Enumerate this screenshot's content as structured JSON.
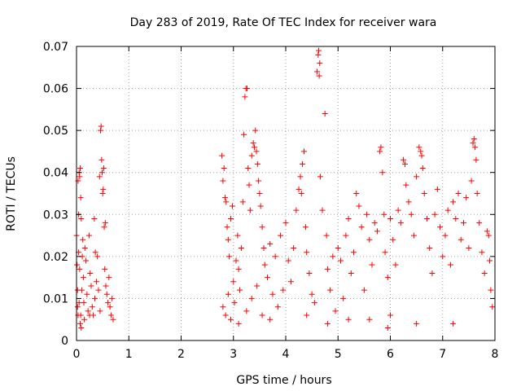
{
  "chart_data": {
    "type": "scatter",
    "title": "Day 283 of 2019, Rate Of TEC Index for receiver wara",
    "xlabel": "GPS time / hours",
    "ylabel": "ROTI / TECUs",
    "xlim": [
      0,
      8
    ],
    "ylim": [
      0,
      0.07
    ],
    "x_ticks": [
      0,
      1,
      2,
      3,
      4,
      5,
      6,
      7,
      8
    ],
    "x_tick_labels": [
      "0",
      "1",
      "2",
      "3",
      "4",
      "5",
      "6",
      "7",
      "8"
    ],
    "y_ticks": [
      0,
      0.01,
      0.02,
      0.03,
      0.04,
      0.05,
      0.06,
      0.07
    ],
    "y_tick_labels": [
      "0",
      "0.01",
      "0.02",
      "0.03",
      "0.04",
      "0.05",
      "0.06",
      "0.07"
    ],
    "grid": true,
    "marker": "+",
    "color": "#ff0000",
    "series": [
      {
        "name": "ROTI",
        "points": [
          [
            0.0,
            0.025
          ],
          [
            0.01,
            0.018
          ],
          [
            0.02,
            0.008
          ],
          [
            0.03,
            0.038
          ],
          [
            0.04,
            0.03
          ],
          [
            0.05,
            0.04
          ],
          [
            0.06,
            0.039
          ],
          [
            0.07,
            0.041
          ],
          [
            0.08,
            0.034
          ],
          [
            0.09,
            0.029
          ],
          [
            0.02,
            0.012
          ],
          [
            0.04,
            0.021
          ],
          [
            0.06,
            0.017
          ],
          [
            0.08,
            0.006
          ],
          [
            0.1,
            0.012
          ],
          [
            0.11,
            0.02
          ],
          [
            0.12,
            0.024
          ],
          [
            0.13,
            0.015
          ],
          [
            0.14,
            0.009
          ],
          [
            0.15,
            0.005
          ],
          [
            0.03,
            0.006
          ],
          [
            0.05,
            0.009
          ],
          [
            0.07,
            0.004
          ],
          [
            0.09,
            0.003
          ],
          [
            0.16,
            0.022
          ],
          [
            0.18,
            0.019
          ],
          [
            0.2,
            0.011
          ],
          [
            0.22,
            0.007
          ],
          [
            0.24,
            0.025
          ],
          [
            0.26,
            0.016
          ],
          [
            0.28,
            0.013
          ],
          [
            0.3,
            0.008
          ],
          [
            0.32,
            0.006
          ],
          [
            0.34,
            0.029
          ],
          [
            0.36,
            0.021
          ],
          [
            0.38,
            0.014
          ],
          [
            0.4,
            0.02
          ],
          [
            0.42,
            0.012
          ],
          [
            0.44,
            0.039
          ],
          [
            0.46,
            0.05
          ],
          [
            0.47,
            0.051
          ],
          [
            0.48,
            0.043
          ],
          [
            0.49,
            0.04
          ],
          [
            0.5,
            0.035
          ],
          [
            0.51,
            0.036
          ],
          [
            0.52,
            0.041
          ],
          [
            0.53,
            0.027
          ],
          [
            0.54,
            0.017
          ],
          [
            0.55,
            0.028
          ],
          [
            0.56,
            0.013
          ],
          [
            0.58,
            0.011
          ],
          [
            0.6,
            0.009
          ],
          [
            0.62,
            0.015
          ],
          [
            0.64,
            0.008
          ],
          [
            0.66,
            0.006
          ],
          [
            0.68,
            0.01
          ],
          [
            0.7,
            0.005
          ],
          [
            0.35,
            0.01
          ],
          [
            0.45,
            0.007
          ],
          [
            0.25,
            0.006
          ],
          [
            2.78,
            0.044
          ],
          [
            2.8,
            0.038
          ],
          [
            2.82,
            0.041
          ],
          [
            2.84,
            0.034
          ],
          [
            2.86,
            0.033
          ],
          [
            2.88,
            0.027
          ],
          [
            2.9,
            0.024
          ],
          [
            2.92,
            0.02
          ],
          [
            2.95,
            0.029
          ],
          [
            2.98,
            0.032
          ],
          [
            2.8,
            0.008
          ],
          [
            2.85,
            0.006
          ],
          [
            2.9,
            0.011
          ],
          [
            2.95,
            0.005
          ],
          [
            3.0,
            0.014
          ],
          [
            3.02,
            0.009
          ],
          [
            3.05,
            0.019
          ],
          [
            3.08,
            0.025
          ],
          [
            3.1,
            0.017
          ],
          [
            3.12,
            0.012
          ],
          [
            3.15,
            0.022
          ],
          [
            3.18,
            0.033
          ],
          [
            3.2,
            0.049
          ],
          [
            3.22,
            0.058
          ],
          [
            3.24,
            0.06
          ],
          [
            3.26,
            0.06
          ],
          [
            3.28,
            0.041
          ],
          [
            3.3,
            0.037
          ],
          [
            3.32,
            0.031
          ],
          [
            3.35,
            0.044
          ],
          [
            3.38,
            0.047
          ],
          [
            3.4,
            0.046
          ],
          [
            3.42,
            0.05
          ],
          [
            3.44,
            0.045
          ],
          [
            3.46,
            0.042
          ],
          [
            3.48,
            0.038
          ],
          [
            3.5,
            0.035
          ],
          [
            3.52,
            0.032
          ],
          [
            3.55,
            0.027
          ],
          [
            3.58,
            0.022
          ],
          [
            3.25,
            0.007
          ],
          [
            3.35,
            0.01
          ],
          [
            3.45,
            0.013
          ],
          [
            3.55,
            0.006
          ],
          [
            3.6,
            0.018
          ],
          [
            3.65,
            0.015
          ],
          [
            3.7,
            0.023
          ],
          [
            3.75,
            0.011
          ],
          [
            3.8,
            0.02
          ],
          [
            3.85,
            0.008
          ],
          [
            3.9,
            0.025
          ],
          [
            3.95,
            0.012
          ],
          [
            4.0,
            0.028
          ],
          [
            4.05,
            0.019
          ],
          [
            4.1,
            0.014
          ],
          [
            4.15,
            0.022
          ],
          [
            4.2,
            0.031
          ],
          [
            4.25,
            0.036
          ],
          [
            4.28,
            0.039
          ],
          [
            4.3,
            0.035
          ],
          [
            4.32,
            0.042
          ],
          [
            4.35,
            0.045
          ],
          [
            4.38,
            0.027
          ],
          [
            4.4,
            0.021
          ],
          [
            4.45,
            0.016
          ],
          [
            4.5,
            0.011
          ],
          [
            4.55,
            0.009
          ],
          [
            4.6,
            0.064
          ],
          [
            4.62,
            0.068
          ],
          [
            4.63,
            0.069
          ],
          [
            4.64,
            0.063
          ],
          [
            4.65,
            0.066
          ],
          [
            4.66,
            0.039
          ],
          [
            4.7,
            0.031
          ],
          [
            4.75,
            0.054
          ],
          [
            4.78,
            0.025
          ],
          [
            4.8,
            0.017
          ],
          [
            4.85,
            0.012
          ],
          [
            4.9,
            0.02
          ],
          [
            4.95,
            0.007
          ],
          [
            5.0,
            0.022
          ],
          [
            5.05,
            0.019
          ],
          [
            5.1,
            0.01
          ],
          [
            5.15,
            0.025
          ],
          [
            5.2,
            0.029
          ],
          [
            5.25,
            0.016
          ],
          [
            5.3,
            0.021
          ],
          [
            5.35,
            0.035
          ],
          [
            5.4,
            0.032
          ],
          [
            5.45,
            0.027
          ],
          [
            5.5,
            0.012
          ],
          [
            5.55,
            0.03
          ],
          [
            5.6,
            0.024
          ],
          [
            5.65,
            0.018
          ],
          [
            5.7,
            0.028
          ],
          [
            5.75,
            0.026
          ],
          [
            5.8,
            0.045
          ],
          [
            5.82,
            0.046
          ],
          [
            5.85,
            0.04
          ],
          [
            5.88,
            0.03
          ],
          [
            5.9,
            0.021
          ],
          [
            5.95,
            0.015
          ],
          [
            6.0,
            0.029
          ],
          [
            6.05,
            0.024
          ],
          [
            6.1,
            0.018
          ],
          [
            6.15,
            0.031
          ],
          [
            6.2,
            0.028
          ],
          [
            6.25,
            0.043
          ],
          [
            6.28,
            0.042
          ],
          [
            6.3,
            0.037
          ],
          [
            6.35,
            0.033
          ],
          [
            6.4,
            0.03
          ],
          [
            6.45,
            0.025
          ],
          [
            6.5,
            0.039
          ],
          [
            6.55,
            0.046
          ],
          [
            6.58,
            0.045
          ],
          [
            6.6,
            0.044
          ],
          [
            6.62,
            0.041
          ],
          [
            6.65,
            0.035
          ],
          [
            6.7,
            0.029
          ],
          [
            6.75,
            0.022
          ],
          [
            6.8,
            0.016
          ],
          [
            6.85,
            0.03
          ],
          [
            6.9,
            0.036
          ],
          [
            6.95,
            0.027
          ],
          [
            7.0,
            0.02
          ],
          [
            7.05,
            0.025
          ],
          [
            7.1,
            0.031
          ],
          [
            7.15,
            0.018
          ],
          [
            7.2,
            0.033
          ],
          [
            7.25,
            0.029
          ],
          [
            7.3,
            0.035
          ],
          [
            7.35,
            0.024
          ],
          [
            7.4,
            0.028
          ],
          [
            7.45,
            0.034
          ],
          [
            7.5,
            0.022
          ],
          [
            7.55,
            0.038
          ],
          [
            7.58,
            0.047
          ],
          [
            7.6,
            0.048
          ],
          [
            7.62,
            0.046
          ],
          [
            7.64,
            0.043
          ],
          [
            7.66,
            0.035
          ],
          [
            7.7,
            0.028
          ],
          [
            7.75,
            0.021
          ],
          [
            7.8,
            0.016
          ],
          [
            7.85,
            0.026
          ],
          [
            7.88,
            0.025
          ],
          [
            7.9,
            0.019
          ],
          [
            7.92,
            0.012
          ],
          [
            7.95,
            0.008
          ],
          [
            5.95,
            0.003
          ],
          [
            6.5,
            0.004
          ],
          [
            4.8,
            0.004
          ],
          [
            5.2,
            0.005
          ],
          [
            3.1,
            0.004
          ],
          [
            7.2,
            0.004
          ],
          [
            6.0,
            0.006
          ],
          [
            5.6,
            0.005
          ],
          [
            4.4,
            0.006
          ],
          [
            3.7,
            0.005
          ]
        ]
      }
    ]
  }
}
